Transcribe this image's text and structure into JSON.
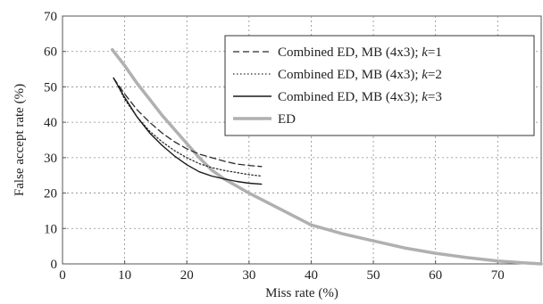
{
  "chart_data": {
    "type": "line",
    "xlabel": "Miss rate (%)",
    "ylabel": "False accept rate (%)",
    "xlim": [
      0,
      77
    ],
    "ylim": [
      0,
      70
    ],
    "x_ticks": [
      0,
      10,
      20,
      30,
      40,
      50,
      60,
      70
    ],
    "y_ticks": [
      0,
      10,
      20,
      30,
      40,
      50,
      60,
      70
    ],
    "grid": true,
    "legend_position": "top-right",
    "series": [
      {
        "name": "Combined ED, MB (4x3); k=1",
        "legend_parts": [
          "Combined ED, MB (4x3); ",
          "k",
          "=1"
        ],
        "style": "dashed",
        "color": "#2b2b2b",
        "x": [
          8.2,
          10,
          12,
          14,
          16,
          18,
          20,
          22,
          24,
          26,
          28,
          30,
          32
        ],
        "y": [
          52.5,
          48.0,
          43.5,
          40.0,
          37.0,
          34.5,
          32.5,
          31.0,
          30.0,
          29.0,
          28.2,
          27.8,
          27.5
        ]
      },
      {
        "name": "Combined ED, MB (4x3); k=2",
        "legend_parts": [
          "Combined ED, MB (4x3); ",
          "k",
          "=2"
        ],
        "style": "dotted",
        "color": "#2b2b2b",
        "x": [
          9,
          10,
          12,
          14,
          16,
          18,
          20,
          22,
          24,
          26,
          28,
          30,
          32
        ],
        "y": [
          50.0,
          46.5,
          41.5,
          37.5,
          34.5,
          32.0,
          30.0,
          28.3,
          27.2,
          26.4,
          25.8,
          25.2,
          24.8
        ]
      },
      {
        "name": "Combined ED, MB (4x3); k=3",
        "legend_parts": [
          "Combined ED, MB (4x3); ",
          "k",
          "=3"
        ],
        "style": "solid",
        "color": "#1a1a1a",
        "x": [
          8.2,
          10,
          12,
          14,
          16,
          18,
          20,
          22,
          24,
          26,
          28,
          30,
          32
        ],
        "y": [
          52.5,
          47.0,
          41.5,
          37.0,
          33.5,
          30.5,
          28.0,
          26.0,
          24.8,
          24.0,
          23.3,
          22.8,
          22.5
        ]
      },
      {
        "name": "ED",
        "legend_parts": [
          "ED"
        ],
        "style": "solid-thick",
        "color": "#b0b0b0",
        "x": [
          8.0,
          10,
          12,
          14,
          16,
          18,
          20,
          22,
          24,
          26,
          30,
          35,
          40,
          45,
          50,
          55,
          60,
          65,
          70,
          74,
          77
        ],
        "y": [
          60.5,
          56.0,
          51.0,
          46.5,
          42.0,
          38.0,
          34.0,
          30.0,
          26.5,
          24.0,
          20.0,
          15.5,
          11.0,
          8.5,
          6.5,
          4.5,
          3.0,
          1.8,
          0.8,
          0.3,
          0.0
        ]
      }
    ]
  }
}
